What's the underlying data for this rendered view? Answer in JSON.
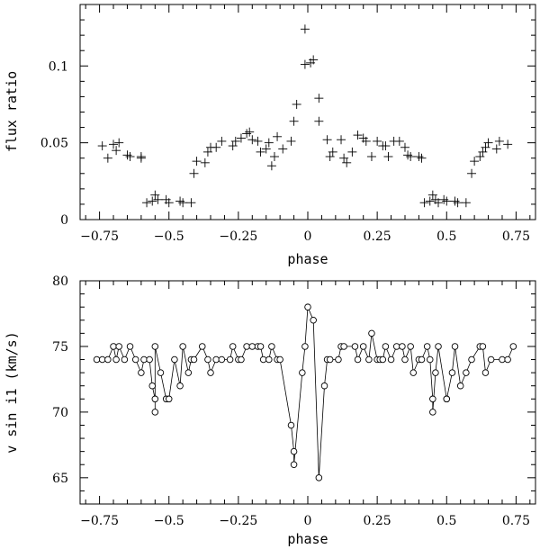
{
  "chart_data": [
    {
      "type": "scatter",
      "xlabel": "phase",
      "ylabel": "flux ratio",
      "xlim": [
        -0.82,
        0.82
      ],
      "ylim": [
        0,
        0.14
      ],
      "xticks": [
        -0.75,
        -0.5,
        -0.25,
        0,
        0.25,
        0.5,
        0.75
      ],
      "xtick_labels": [
        "−0.75",
        "−0.5",
        "−0.25",
        "0",
        "0.25",
        "0.5",
        "0.75"
      ],
      "yticks": [
        0,
        0.05,
        0.1
      ],
      "ytick_labels": [
        "0",
        "0.05",
        "0.1"
      ],
      "marker": "plus",
      "grid": false,
      "points": [
        [
          -0.74,
          0.048
        ],
        [
          -0.72,
          0.04
        ],
        [
          -0.7,
          0.049
        ],
        [
          -0.69,
          0.045
        ],
        [
          -0.68,
          0.05
        ],
        [
          -0.65,
          0.042
        ],
        [
          -0.64,
          0.041
        ],
        [
          -0.6,
          0.041
        ],
        [
          -0.6,
          0.04
        ],
        [
          -0.58,
          0.011
        ],
        [
          -0.56,
          0.012
        ],
        [
          -0.55,
          0.016
        ],
        [
          -0.54,
          0.013
        ],
        [
          -0.51,
          0.013
        ],
        [
          -0.5,
          0.011
        ],
        [
          -0.46,
          0.012
        ],
        [
          -0.45,
          0.011
        ],
        [
          -0.42,
          0.011
        ],
        [
          -0.41,
          0.03
        ],
        [
          -0.4,
          0.038
        ],
        [
          -0.37,
          0.037
        ],
        [
          -0.36,
          0.044
        ],
        [
          -0.35,
          0.047
        ],
        [
          -0.33,
          0.047
        ],
        [
          -0.31,
          0.051
        ],
        [
          -0.27,
          0.048
        ],
        [
          -0.26,
          0.051
        ],
        [
          -0.24,
          0.053
        ],
        [
          -0.22,
          0.056
        ],
        [
          -0.21,
          0.057
        ],
        [
          -0.2,
          0.052
        ],
        [
          -0.18,
          0.051
        ],
        [
          -0.17,
          0.044
        ],
        [
          -0.15,
          0.046
        ],
        [
          -0.14,
          0.05
        ],
        [
          -0.13,
          0.035
        ],
        [
          -0.12,
          0.041
        ],
        [
          -0.11,
          0.054
        ],
        [
          -0.09,
          0.046
        ],
        [
          -0.06,
          0.051
        ],
        [
          -0.05,
          0.064
        ],
        [
          -0.04,
          0.075
        ],
        [
          -0.01,
          0.124
        ],
        [
          -0.01,
          0.101
        ],
        [
          0.01,
          0.102
        ],
        [
          0.02,
          0.104
        ],
        [
          0.04,
          0.079
        ],
        [
          0.04,
          0.064
        ],
        [
          0.07,
          0.052
        ],
        [
          0.08,
          0.041
        ],
        [
          0.09,
          0.044
        ],
        [
          0.12,
          0.052
        ],
        [
          0.13,
          0.04
        ],
        [
          0.14,
          0.037
        ],
        [
          0.16,
          0.044
        ],
        [
          0.18,
          0.055
        ],
        [
          0.2,
          0.053
        ],
        [
          0.21,
          0.051
        ],
        [
          0.23,
          0.041
        ],
        [
          0.25,
          0.051
        ],
        [
          0.27,
          0.048
        ],
        [
          0.28,
          0.048
        ],
        [
          0.29,
          0.041
        ],
        [
          0.31,
          0.051
        ],
        [
          0.33,
          0.051
        ],
        [
          0.35,
          0.047
        ],
        [
          0.36,
          0.042
        ],
        [
          0.37,
          0.041
        ],
        [
          0.4,
          0.041
        ],
        [
          0.41,
          0.04
        ],
        [
          0.42,
          0.011
        ],
        [
          0.44,
          0.012
        ],
        [
          0.45,
          0.016
        ],
        [
          0.46,
          0.013
        ],
        [
          0.47,
          0.011
        ],
        [
          0.49,
          0.013
        ],
        [
          0.5,
          0.012
        ],
        [
          0.53,
          0.012
        ],
        [
          0.54,
          0.011
        ],
        [
          0.57,
          0.011
        ],
        [
          0.59,
          0.03
        ],
        [
          0.6,
          0.038
        ],
        [
          0.62,
          0.041
        ],
        [
          0.63,
          0.044
        ],
        [
          0.64,
          0.047
        ],
        [
          0.65,
          0.05
        ],
        [
          0.68,
          0.046
        ],
        [
          0.69,
          0.051
        ],
        [
          0.72,
          0.049
        ]
      ]
    },
    {
      "type": "line",
      "xlabel": "phase",
      "ylabel": "v sin i1 (km/s)",
      "xlim": [
        -0.82,
        0.82
      ],
      "ylim": [
        63,
        80
      ],
      "xticks": [
        -0.75,
        -0.5,
        -0.25,
        0,
        0.25,
        0.5,
        0.75
      ],
      "xtick_labels": [
        "−0.75",
        "−0.5",
        "−0.25",
        "0",
        "0.25",
        "0.5",
        "0.75"
      ],
      "yticks": [
        65,
        70,
        75,
        80
      ],
      "ytick_labels": [
        "65",
        "70",
        "75",
        "80"
      ],
      "marker": "circle",
      "grid": false,
      "points": [
        [
          -0.76,
          74
        ],
        [
          -0.74,
          74
        ],
        [
          -0.72,
          74
        ],
        [
          -0.7,
          75
        ],
        [
          -0.69,
          74
        ],
        [
          -0.68,
          75
        ],
        [
          -0.66,
          74
        ],
        [
          -0.64,
          75
        ],
        [
          -0.62,
          74
        ],
        [
          -0.6,
          73
        ],
        [
          -0.59,
          74
        ],
        [
          -0.57,
          74
        ],
        [
          -0.56,
          72
        ],
        [
          -0.55,
          71
        ],
        [
          -0.55,
          70
        ],
        [
          -0.55,
          75
        ],
        [
          -0.53,
          73
        ],
        [
          -0.51,
          71
        ],
        [
          -0.5,
          71
        ],
        [
          -0.48,
          74
        ],
        [
          -0.46,
          72
        ],
        [
          -0.45,
          75
        ],
        [
          -0.43,
          73
        ],
        [
          -0.42,
          74
        ],
        [
          -0.41,
          74
        ],
        [
          -0.38,
          75
        ],
        [
          -0.36,
          74
        ],
        [
          -0.35,
          73
        ],
        [
          -0.33,
          74
        ],
        [
          -0.31,
          74
        ],
        [
          -0.28,
          74
        ],
        [
          -0.27,
          75
        ],
        [
          -0.25,
          74
        ],
        [
          -0.24,
          74
        ],
        [
          -0.22,
          75
        ],
        [
          -0.2,
          75
        ],
        [
          -0.18,
          75
        ],
        [
          -0.17,
          75
        ],
        [
          -0.16,
          74
        ],
        [
          -0.14,
          74
        ],
        [
          -0.13,
          75
        ],
        [
          -0.11,
          74
        ],
        [
          -0.1,
          74
        ],
        [
          -0.06,
          69
        ],
        [
          -0.05,
          67
        ],
        [
          -0.05,
          66
        ],
        [
          -0.02,
          73
        ],
        [
          -0.01,
          75
        ],
        [
          0.0,
          78
        ],
        [
          0.02,
          77
        ],
        [
          0.04,
          65
        ],
        [
          0.06,
          72
        ],
        [
          0.07,
          74
        ],
        [
          0.08,
          74
        ],
        [
          0.11,
          74
        ],
        [
          0.12,
          75
        ],
        [
          0.13,
          75
        ],
        [
          0.17,
          75
        ],
        [
          0.18,
          74
        ],
        [
          0.2,
          75
        ],
        [
          0.22,
          74
        ],
        [
          0.23,
          76
        ],
        [
          0.25,
          74
        ],
        [
          0.26,
          74
        ],
        [
          0.27,
          74
        ],
        [
          0.28,
          75
        ],
        [
          0.3,
          74
        ],
        [
          0.32,
          75
        ],
        [
          0.34,
          75
        ],
        [
          0.35,
          74
        ],
        [
          0.37,
          75
        ],
        [
          0.38,
          73
        ],
        [
          0.4,
          74
        ],
        [
          0.41,
          74
        ],
        [
          0.43,
          75
        ],
        [
          0.44,
          74
        ],
        [
          0.45,
          71
        ],
        [
          0.45,
          70
        ],
        [
          0.46,
          73
        ],
        [
          0.47,
          75
        ],
        [
          0.5,
          71
        ],
        [
          0.5,
          71
        ],
        [
          0.52,
          73
        ],
        [
          0.53,
          75
        ],
        [
          0.55,
          72
        ],
        [
          0.57,
          73
        ],
        [
          0.59,
          74
        ],
        [
          0.62,
          75
        ],
        [
          0.63,
          75
        ],
        [
          0.64,
          73
        ],
        [
          0.66,
          74
        ],
        [
          0.7,
          74
        ],
        [
          0.72,
          74
        ],
        [
          0.74,
          75
        ]
      ]
    }
  ]
}
